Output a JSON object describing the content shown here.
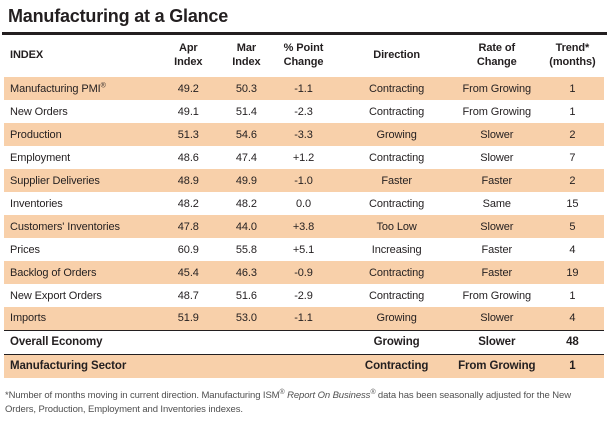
{
  "title": "Manufacturing at a Glance",
  "colors": {
    "highlight": "#F8D0AA",
    "rule": "#231F20",
    "text": "#231F20",
    "footnote_text": "#4F4F4F"
  },
  "table": {
    "columns": [
      {
        "key": "index",
        "label": "INDEX",
        "align": "left"
      },
      {
        "key": "apr",
        "label": "Apr\nIndex",
        "align": "center"
      },
      {
        "key": "mar",
        "label": "Mar\nIndex",
        "align": "center"
      },
      {
        "key": "change",
        "label": "% Point\nChange",
        "align": "center"
      },
      {
        "key": "direction",
        "label": "Direction",
        "align": "center"
      },
      {
        "key": "rate",
        "label": "Rate of\nChange",
        "align": "center"
      },
      {
        "key": "trend",
        "label": "Trend*\n(months)",
        "align": "center"
      }
    ],
    "rows": [
      {
        "index": "Manufacturing PMI®",
        "apr": "49.2",
        "mar": "50.3",
        "change": "-1.1",
        "direction": "Contracting",
        "rate": "From Growing",
        "trend": "1",
        "highlight": true
      },
      {
        "index": "New Orders",
        "apr": "49.1",
        "mar": "51.4",
        "change": "-2.3",
        "direction": "Contracting",
        "rate": "From Growing",
        "trend": "1",
        "highlight": false
      },
      {
        "index": "Production",
        "apr": "51.3",
        "mar": "54.6",
        "change": "-3.3",
        "direction": "Growing",
        "rate": "Slower",
        "trend": "2",
        "highlight": true
      },
      {
        "index": "Employment",
        "apr": "48.6",
        "mar": "47.4",
        "change": "+1.2",
        "direction": "Contracting",
        "rate": "Slower",
        "trend": "7",
        "highlight": false
      },
      {
        "index": "Supplier Deliveries",
        "apr": "48.9",
        "mar": "49.9",
        "change": "-1.0",
        "direction": "Faster",
        "rate": "Faster",
        "trend": "2",
        "highlight": true
      },
      {
        "index": "Inventories",
        "apr": "48.2",
        "mar": "48.2",
        "change": "0.0",
        "direction": "Contracting",
        "rate": "Same",
        "trend": "15",
        "highlight": false
      },
      {
        "index": "Customers' Inventories",
        "apr": "47.8",
        "mar": "44.0",
        "change": "+3.8",
        "direction": "Too Low",
        "rate": "Slower",
        "trend": "5",
        "highlight": true
      },
      {
        "index": "Prices",
        "apr": "60.9",
        "mar": "55.8",
        "change": "+5.1",
        "direction": "Increasing",
        "rate": "Faster",
        "trend": "4",
        "highlight": false
      },
      {
        "index": "Backlog of Orders",
        "apr": "45.4",
        "mar": "46.3",
        "change": "-0.9",
        "direction": "Contracting",
        "rate": "Faster",
        "trend": "19",
        "highlight": true
      },
      {
        "index": "New Export Orders",
        "apr": "48.7",
        "mar": "51.6",
        "change": "-2.9",
        "direction": "Contracting",
        "rate": "From Growing",
        "trend": "1",
        "highlight": false
      },
      {
        "index": "Imports",
        "apr": "51.9",
        "mar": "53.0",
        "change": "-1.1",
        "direction": "Growing",
        "rate": "Slower",
        "trend": "4",
        "highlight": true
      }
    ],
    "summary_rows": [
      {
        "index": "Overall Economy",
        "apr": "",
        "mar": "",
        "change": "",
        "direction": "Growing",
        "rate": "Slower",
        "trend": "48",
        "highlight": false
      },
      {
        "index": "Manufacturing Sector",
        "apr": "",
        "mar": "",
        "change": "",
        "direction": "Contracting",
        "rate": "From Growing",
        "trend": "1",
        "highlight": true
      }
    ]
  },
  "footnote": {
    "part1": "*Number of months moving in current direction. Manufacturing ISM® ",
    "italic": "Report On Business®",
    "part2": " data has been seasonally adjusted for the New Orders, Production, Employment and Inventories indexes."
  }
}
